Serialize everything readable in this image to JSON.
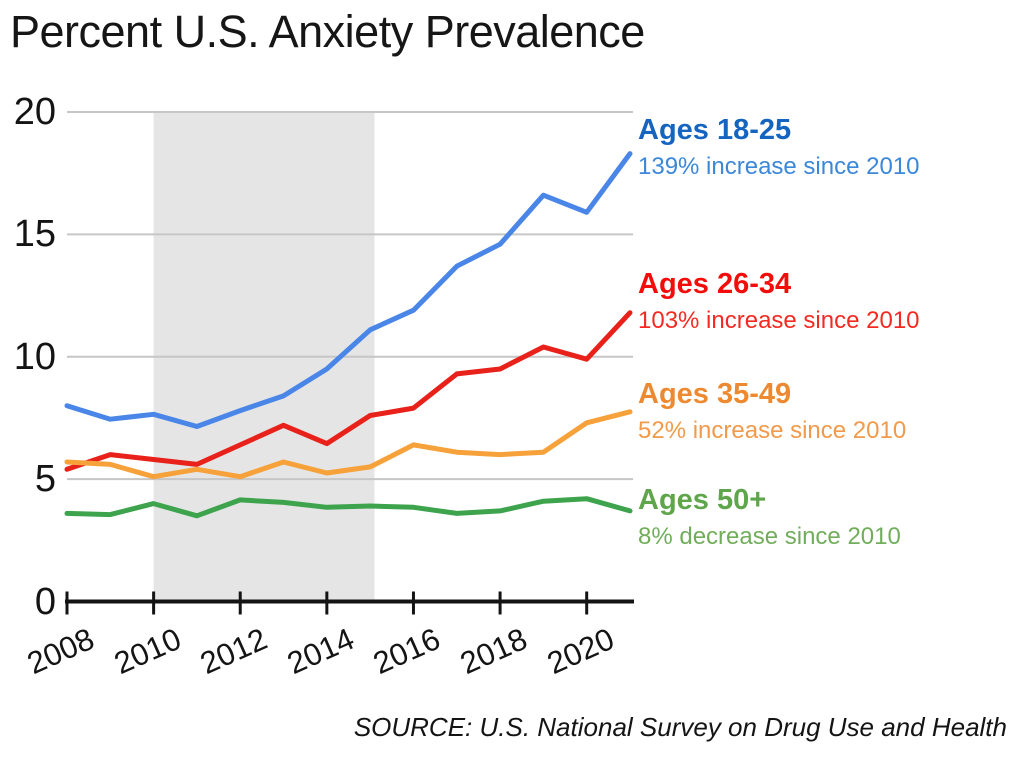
{
  "page": {
    "title": "Percent U.S. Anxiety Prevalence",
    "source": "SOURCE: U.S. National Survey on Drug Use and Health"
  },
  "chart_data": {
    "type": "line",
    "title": "Percent U.S. Anxiety Prevalence",
    "xlabel": "",
    "ylabel": "",
    "x": [
      2008,
      2009,
      2010,
      2011,
      2012,
      2013,
      2014,
      2015,
      2016,
      2017,
      2018,
      2019,
      2020,
      2021
    ],
    "series": [
      {
        "name": "Ages 18-25",
        "annotation": "139% increase since 2010",
        "color": "#4a86e8",
        "label_color": "#1565c0",
        "annotation_color": "#3b87d8",
        "values": [
          8.0,
          7.45,
          7.65,
          7.15,
          7.8,
          8.4,
          9.5,
          11.1,
          11.9,
          13.7,
          14.6,
          16.6,
          15.9,
          18.3
        ]
      },
      {
        "name": "Ages 26-34",
        "annotation": "103% increase since 2010",
        "color": "#e8211a",
        "label_color": "#f20d0a",
        "annotation_color": "#f42a22",
        "values": [
          5.4,
          6.0,
          5.8,
          5.6,
          6.4,
          7.2,
          6.45,
          7.6,
          7.9,
          9.3,
          9.5,
          10.4,
          9.9,
          11.8
        ]
      },
      {
        "name": "Ages 35-49",
        "annotation": "52% increase since 2010",
        "color": "#f6a13a",
        "label_color": "#ed8a31",
        "annotation_color": "#f09a4a",
        "values": [
          5.7,
          5.6,
          5.1,
          5.4,
          5.1,
          5.7,
          5.25,
          5.5,
          6.4,
          6.1,
          6.0,
          6.1,
          7.3,
          7.75
        ]
      },
      {
        "name": "Ages 50+",
        "annotation": "8% decrease since 2010",
        "color": "#3da44d",
        "label_color": "#5fa54b",
        "annotation_color": "#72ad5c",
        "values": [
          3.6,
          3.55,
          4.0,
          3.5,
          4.15,
          4.05,
          3.85,
          3.9,
          3.85,
          3.6,
          3.7,
          4.1,
          4.2,
          3.7
        ]
      }
    ],
    "xticks": [
      2008,
      2010,
      2012,
      2014,
      2016,
      2018,
      2020
    ],
    "yticks": [
      0,
      5,
      10,
      15,
      20
    ],
    "xlim": [
      2008,
      2021
    ],
    "ylim": [
      0,
      20
    ],
    "shaded_region": {
      "from": 2010,
      "to": 2015.1,
      "color": "#e5e5e5"
    },
    "grid": true,
    "gridline_color": "#c6c6c6",
    "axis_color": "#141414",
    "legend_position": "right"
  }
}
